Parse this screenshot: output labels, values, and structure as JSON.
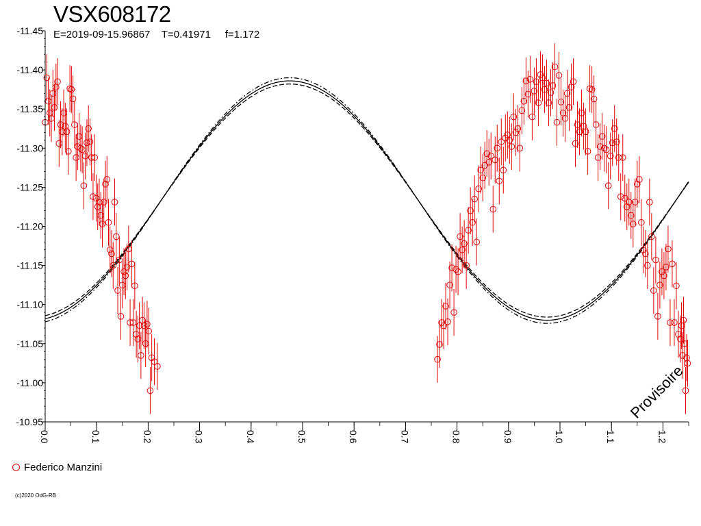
{
  "chart_data": {
    "type": "scatter",
    "title": "VSX608172",
    "subtitle": "E=2019-09-15.96867    T=0.41971     f=1.172",
    "watermark": "Provisoire",
    "copyright": "(c)2020 OdG-RB",
    "xlim": [
      0.0,
      1.25
    ],
    "ylim": [
      -11.45,
      -10.95
    ],
    "y_inverted": true,
    "grid": false,
    "x_ticks": [
      "0.0",
      "0.1",
      "0.2",
      "0.3",
      "0.4",
      "0.5",
      "0.6",
      "0.7",
      "0.8",
      "0.9",
      "1.0",
      "1.1",
      "1.2"
    ],
    "y_ticks": [
      "-11.45",
      "-11.40",
      "-11.35",
      "-11.30",
      "-11.25",
      "-11.20",
      "-11.15",
      "-11.10",
      "-11.05",
      "-11.00",
      "-10.95"
    ],
    "model": {
      "mean": -11.233,
      "amplitude": 0.153,
      "phase_max": 0.475,
      "band": 0.004,
      "styles": [
        "solid",
        "dashed",
        "dashdot"
      ]
    },
    "series": [
      {
        "name": "Federico Manzini",
        "color": "#e00000",
        "marker": "open-circle",
        "points": [
          [
            0.0,
            -11.333
          ],
          [
            0.003,
            -11.39
          ],
          [
            0.006,
            -11.36
          ],
          [
            0.009,
            -11.345
          ],
          [
            0.012,
            -11.338
          ],
          [
            0.015,
            -11.37
          ],
          [
            0.018,
            -11.352
          ],
          [
            0.021,
            -11.378
          ],
          [
            0.024,
            -11.385
          ],
          [
            0.027,
            -11.306
          ],
          [
            0.03,
            -11.33
          ],
          [
            0.033,
            -11.321
          ],
          [
            0.036,
            -11.345
          ],
          [
            0.039,
            -11.328
          ],
          [
            0.042,
            -11.321
          ],
          [
            0.045,
            -11.296
          ],
          [
            0.048,
            -11.376
          ],
          [
            0.051,
            -11.375
          ],
          [
            0.054,
            -11.363
          ],
          [
            0.057,
            -11.33
          ],
          [
            0.06,
            -11.288
          ],
          [
            0.063,
            -11.302
          ],
          [
            0.066,
            -11.315
          ],
          [
            0.069,
            -11.3
          ],
          [
            0.072,
            -11.298
          ],
          [
            0.075,
            -11.252
          ],
          [
            0.078,
            -11.29
          ],
          [
            0.081,
            -11.307
          ],
          [
            0.084,
            -11.325
          ],
          [
            0.087,
            -11.308
          ],
          [
            0.09,
            -11.288
          ],
          [
            0.093,
            -11.238
          ],
          [
            0.096,
            -11.288
          ],
          [
            0.099,
            -11.236
          ],
          [
            0.102,
            -11.225
          ],
          [
            0.105,
            -11.231
          ],
          [
            0.108,
            -11.214
          ],
          [
            0.111,
            -11.203
          ],
          [
            0.114,
            -11.231
          ],
          [
            0.117,
            -11.254
          ],
          [
            0.12,
            -11.26
          ],
          [
            0.123,
            -11.205
          ],
          [
            0.126,
            -11.17
          ],
          [
            0.129,
            -11.165
          ],
          [
            0.132,
            -11.15
          ],
          [
            0.135,
            -11.231
          ],
          [
            0.138,
            -11.187
          ],
          [
            0.141,
            -11.118
          ],
          [
            0.144,
            -11.157
          ],
          [
            0.147,
            -11.085
          ],
          [
            0.15,
            -11.125
          ],
          [
            0.153,
            -11.142
          ],
          [
            0.156,
            -11.137
          ],
          [
            0.159,
            -11.148
          ],
          [
            0.162,
            -11.171
          ],
          [
            0.165,
            -11.077
          ],
          [
            0.168,
            -11.152
          ],
          [
            0.171,
            -11.077
          ],
          [
            0.174,
            -11.124
          ],
          [
            0.177,
            -11.062
          ],
          [
            0.18,
            -11.056
          ],
          [
            0.183,
            -11.073
          ],
          [
            0.186,
            -11.035
          ],
          [
            0.189,
            -11.08
          ],
          [
            0.192,
            -11.073
          ],
          [
            0.195,
            -11.05
          ],
          [
            0.198,
            -11.075
          ],
          [
            0.201,
            -11.066
          ],
          [
            0.204,
            -10.99
          ],
          [
            0.207,
            -11.032
          ],
          [
            0.212,
            -11.027
          ],
          [
            0.218,
            -11.021
          ],
          [
            0.762,
            -11.03
          ],
          [
            0.766,
            -11.049
          ],
          [
            0.77,
            -11.077
          ],
          [
            0.774,
            -11.073
          ],
          [
            0.778,
            -11.098
          ],
          [
            0.782,
            -11.078
          ],
          [
            0.786,
            -11.125
          ],
          [
            0.79,
            -11.147
          ],
          [
            0.794,
            -11.09
          ],
          [
            0.798,
            -11.145
          ],
          [
            0.802,
            -11.142
          ],
          [
            0.806,
            -11.187
          ],
          [
            0.81,
            -11.17
          ],
          [
            0.814,
            -11.178
          ],
          [
            0.818,
            -11.15
          ],
          [
            0.822,
            -11.195
          ],
          [
            0.826,
            -11.22
          ],
          [
            0.83,
            -11.205
          ],
          [
            0.834,
            -11.235
          ],
          [
            0.838,
            -11.18
          ],
          [
            0.842,
            -11.248
          ],
          [
            0.846,
            -11.272
          ],
          [
            0.85,
            -11.262
          ],
          [
            0.854,
            -11.278
          ],
          [
            0.858,
            -11.293
          ],
          [
            0.862,
            -11.282
          ],
          [
            0.866,
            -11.29
          ],
          [
            0.87,
            -11.222
          ],
          [
            0.874,
            -11.285
          ],
          [
            0.878,
            -11.3
          ],
          [
            0.882,
            -11.258
          ],
          [
            0.886,
            -11.308
          ],
          [
            0.89,
            -11.272
          ],
          [
            0.894,
            -11.313
          ],
          [
            0.898,
            -11.317
          ],
          [
            0.902,
            -11.31
          ],
          [
            0.906,
            -11.302
          ],
          [
            0.91,
            -11.34
          ],
          [
            0.914,
            -11.32
          ],
          [
            0.918,
            -11.325
          ],
          [
            0.922,
            -11.3
          ],
          [
            0.926,
            -11.348
          ],
          [
            0.93,
            -11.36
          ],
          [
            0.934,
            -11.386
          ],
          [
            0.938,
            -11.369
          ],
          [
            0.942,
            -11.388
          ],
          [
            0.946,
            -11.34
          ],
          [
            0.95,
            -11.373
          ],
          [
            0.954,
            -11.385
          ],
          [
            0.958,
            -11.358
          ],
          [
            0.962,
            -11.394
          ],
          [
            0.966,
            -11.39
          ],
          [
            0.97,
            -11.375
          ],
          [
            0.974,
            -11.383
          ],
          [
            0.978,
            -11.358
          ],
          [
            0.982,
            -11.371
          ],
          [
            0.986,
            -11.38
          ],
          [
            0.99,
            -11.404
          ],
          [
            0.994,
            -11.333
          ],
          [
            0.998,
            -11.393
          ],
          [
            1.002,
            -11.359
          ],
          [
            1.006,
            -11.345
          ],
          [
            1.01,
            -11.338
          ],
          [
            1.014,
            -11.37
          ],
          [
            1.018,
            -11.352
          ],
          [
            1.022,
            -11.378
          ],
          [
            1.026,
            -11.385
          ],
          [
            1.03,
            -11.306
          ],
          [
            1.034,
            -11.33
          ],
          [
            1.038,
            -11.321
          ],
          [
            1.042,
            -11.345
          ],
          [
            1.046,
            -11.328
          ],
          [
            1.05,
            -11.321
          ],
          [
            1.054,
            -11.296
          ],
          [
            1.058,
            -11.376
          ],
          [
            1.062,
            -11.375
          ],
          [
            1.066,
            -11.363
          ],
          [
            1.07,
            -11.33
          ],
          [
            1.074,
            -11.288
          ],
          [
            1.078,
            -11.302
          ],
          [
            1.082,
            -11.315
          ],
          [
            1.086,
            -11.3
          ],
          [
            1.09,
            -11.298
          ],
          [
            1.094,
            -11.252
          ],
          [
            1.098,
            -11.29
          ],
          [
            1.102,
            -11.307
          ],
          [
            1.106,
            -11.325
          ],
          [
            1.11,
            -11.308
          ],
          [
            1.114,
            -11.288
          ],
          [
            1.118,
            -11.238
          ],
          [
            1.122,
            -11.288
          ],
          [
            1.126,
            -11.236
          ],
          [
            1.13,
            -11.225
          ],
          [
            1.134,
            -11.231
          ],
          [
            1.138,
            -11.214
          ],
          [
            1.142,
            -11.203
          ],
          [
            1.146,
            -11.231
          ],
          [
            1.15,
            -11.254
          ],
          [
            1.154,
            -11.26
          ],
          [
            1.158,
            -11.205
          ],
          [
            1.162,
            -11.17
          ],
          [
            1.166,
            -11.165
          ],
          [
            1.17,
            -11.15
          ],
          [
            1.174,
            -11.231
          ],
          [
            1.178,
            -11.187
          ],
          [
            1.182,
            -11.118
          ],
          [
            1.186,
            -11.157
          ],
          [
            1.19,
            -11.085
          ],
          [
            1.194,
            -11.125
          ],
          [
            1.198,
            -11.142
          ],
          [
            1.202,
            -11.137
          ],
          [
            1.206,
            -11.148
          ],
          [
            1.21,
            -11.171
          ],
          [
            1.214,
            -11.077
          ],
          [
            1.218,
            -11.152
          ],
          [
            1.222,
            -11.077
          ],
          [
            1.226,
            -11.124
          ],
          [
            1.23,
            -11.062
          ],
          [
            1.234,
            -11.056
          ],
          [
            1.236,
            -11.073
          ],
          [
            1.238,
            -11.035
          ],
          [
            1.24,
            -11.08
          ],
          [
            1.242,
            -11.05
          ],
          [
            1.244,
            -10.99
          ],
          [
            1.246,
            -11.032
          ],
          [
            1.248,
            -11.025
          ]
        ],
        "error": 0.03
      }
    ]
  }
}
